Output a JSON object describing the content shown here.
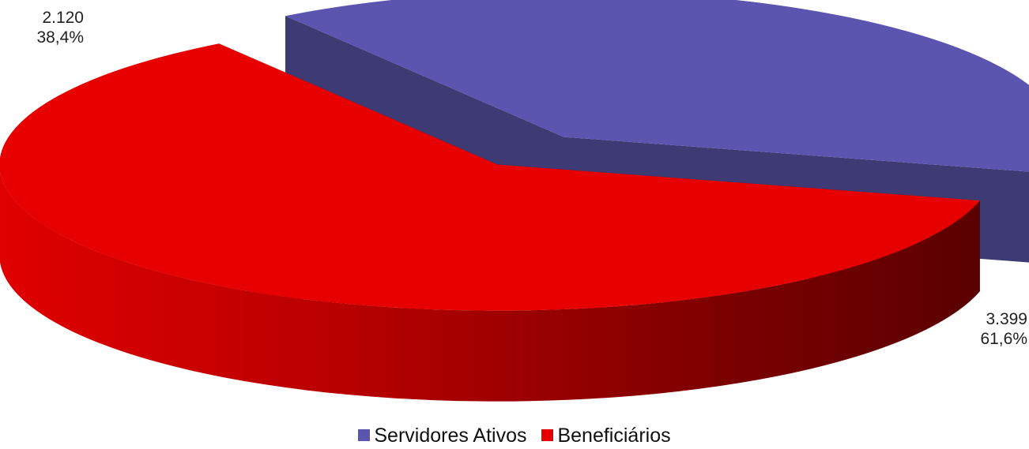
{
  "chart_data": {
    "type": "pie",
    "categories": [
      "Servidores Ativos",
      "Beneficiários"
    ],
    "values": [
      2120,
      3399
    ],
    "value_labels": [
      "2.120",
      "3.399"
    ],
    "percent_labels": [
      "38,4%",
      "61,6%"
    ],
    "percents": [
      38.4,
      61.6
    ],
    "colors": [
      "#5b55b0",
      "#e60000"
    ],
    "style": "3d exploded",
    "legend": {
      "position": "bottom"
    }
  }
}
